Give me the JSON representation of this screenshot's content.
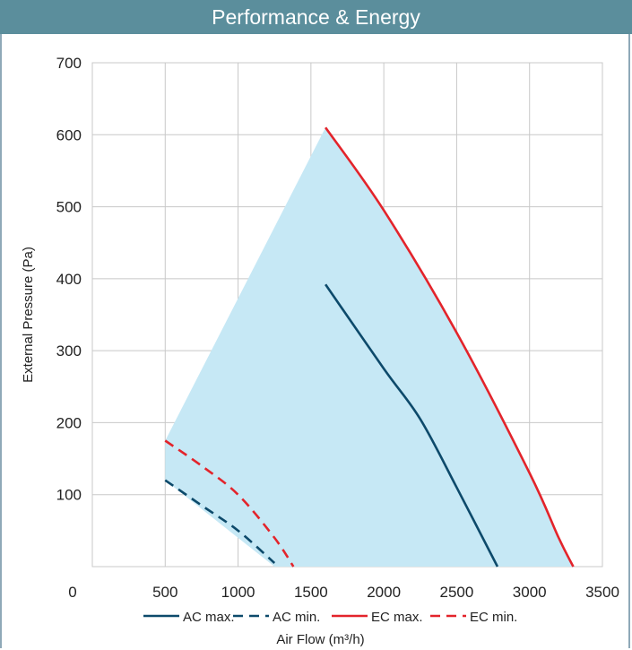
{
  "title": "Performance & Energy",
  "chart_data": {
    "type": "line",
    "xlabel": "Air Flow (m³/h)",
    "ylabel": "External Pressure (Pa)",
    "xlim": [
      0,
      3500
    ],
    "ylim": [
      0,
      700
    ],
    "x_ticks": [
      0,
      500,
      1000,
      1500,
      2000,
      2500,
      3000,
      3500
    ],
    "y_ticks": [
      100,
      200,
      300,
      400,
      500,
      600,
      700
    ],
    "grid": true,
    "legend_position": "bottom",
    "colors": {
      "ac": "#0d4a6b",
      "ec": "#e3242b",
      "area": "#c6e8f5",
      "grid": "#c8c8c8",
      "title_bg": "#5b8e9c"
    },
    "shaded_area": [
      [
        500,
        175
      ],
      [
        1600,
        610
      ],
      [
        2000,
        495
      ],
      [
        2500,
        325
      ],
      [
        3000,
        130
      ],
      [
        3300,
        0
      ],
      [
        1250,
        0
      ],
      [
        500,
        120
      ]
    ],
    "series": [
      {
        "name": "AC max.",
        "style": "solid",
        "color": "#0d4a6b",
        "points": [
          [
            1600,
            392
          ],
          [
            2000,
            275
          ],
          [
            2250,
            205
          ],
          [
            2500,
            110
          ],
          [
            2780,
            0
          ]
        ]
      },
      {
        "name": "AC min.",
        "style": "dashed",
        "color": "#0d4a6b",
        "points": [
          [
            500,
            120
          ],
          [
            750,
            85
          ],
          [
            1000,
            50
          ],
          [
            1250,
            5
          ]
        ]
      },
      {
        "name": "EC max.",
        "style": "solid",
        "color": "#e3242b",
        "points": [
          [
            1600,
            610
          ],
          [
            2000,
            495
          ],
          [
            2500,
            325
          ],
          [
            3000,
            130
          ],
          [
            3200,
            40
          ],
          [
            3300,
            0
          ]
        ]
      },
      {
        "name": "EC min.",
        "style": "dashed",
        "color": "#e3242b",
        "points": [
          [
            500,
            175
          ],
          [
            750,
            140
          ],
          [
            1000,
            100
          ],
          [
            1250,
            40
          ],
          [
            1380,
            0
          ]
        ]
      }
    ]
  }
}
